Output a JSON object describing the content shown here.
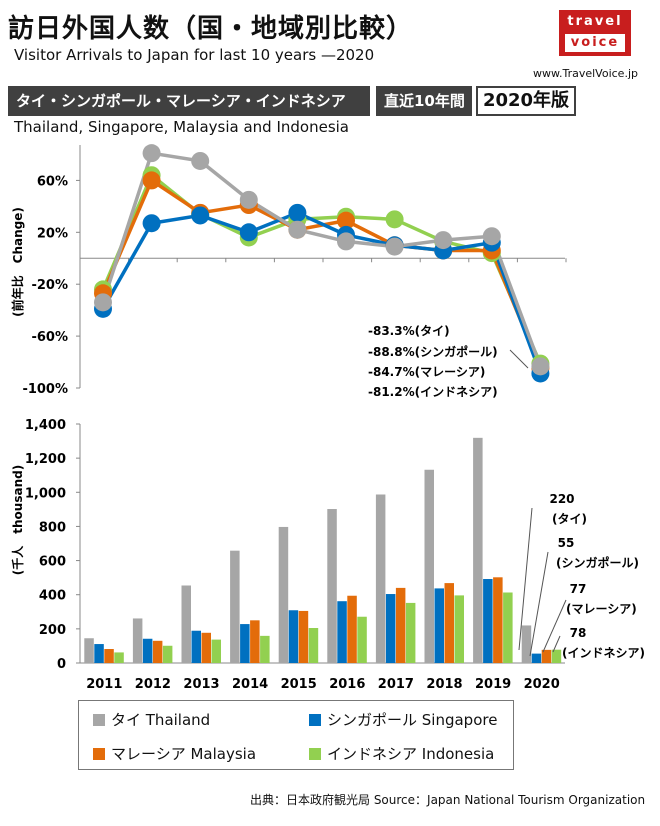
{
  "header": {
    "title_ja": "訪日外国人数（国・地域別比較）",
    "title_en": "Visitor Arrivals to Japan for last 10 years —2020",
    "logo_line1": "travel",
    "logo_line2": "voice",
    "logo_url": "www.TravelVoice.jp",
    "banner_countries": "タイ・シンガポール・マレーシア・インドネシア",
    "banner_period": "直近10年間",
    "banner_edition": "2020年版",
    "subtitle_en": "Thailand, Singapore, Malaysia and Indonesia"
  },
  "colors": {
    "thailand": "#a6a6a6",
    "singapore": "#0070c0",
    "malaysia": "#e36c0a",
    "indonesia": "#92d050"
  },
  "legend": {
    "thailand": "タイ Thailand",
    "singapore": "シンガポール Singapore",
    "malaysia": "マレーシア  Malaysia",
    "indonesia": "インドネシア Indonesia"
  },
  "source": "出典：日本政府観光局   Source：Japan  National Tourism   Organization",
  "chart_data": [
    {
      "type": "line",
      "ylabel": "(前年比　Change)",
      "y_ticks": [
        "-100%",
        "-60%",
        "-20%",
        "20%",
        "60%"
      ],
      "ylim": [
        -100,
        95
      ],
      "x": [
        "2011",
        "2012",
        "2013",
        "2014",
        "2015",
        "2016",
        "2017",
        "2018",
        "2019",
        "2020"
      ],
      "series": [
        {
          "name": "タイ Thailand",
          "key": "thailand",
          "values": [
            -34,
            81,
            75,
            45,
            22,
            13,
            9,
            14,
            17,
            -83.3
          ]
        },
        {
          "name": "シンガポール Singapore",
          "key": "singapore",
          "values": [
            -39,
            27,
            33,
            20,
            35,
            18,
            10,
            6,
            12,
            -88.8
          ]
        },
        {
          "name": "マレーシア Malaysia",
          "key": "malaysia",
          "values": [
            -27,
            60,
            35,
            41,
            22,
            29,
            10,
            6,
            6,
            -84.7
          ]
        },
        {
          "name": "インドネシア Indonesia",
          "key": "indonesia",
          "values": [
            -24,
            64,
            34,
            16,
            30,
            32,
            30,
            13,
            4,
            -81.2
          ]
        }
      ],
      "annotations": [
        "-83.3%(タイ)",
        "-88.8%(シンガポール)",
        "-84.7%(マレーシア)",
        "-81.2%(インドネシア)"
      ]
    },
    {
      "type": "bar",
      "ylabel": "(千人　thousand)",
      "y_ticks": [
        "0",
        "200",
        "400",
        "600",
        "800",
        "1,000",
        "1,200",
        "1,400"
      ],
      "ylim": [
        0,
        1400
      ],
      "categories": [
        "2011",
        "2012",
        "2013",
        "2014",
        "2015",
        "2016",
        "2017",
        "2018",
        "2019",
        "2020"
      ],
      "series": [
        {
          "name": "タイ Thailand",
          "key": "thailand",
          "values": [
            145,
            261,
            454,
            658,
            797,
            902,
            987,
            1132,
            1319,
            220
          ]
        },
        {
          "name": "シンガポール Singapore",
          "key": "singapore",
          "values": [
            111,
            142,
            189,
            228,
            309,
            362,
            404,
            437,
            492,
            55
          ]
        },
        {
          "name": "マレーシア Malaysia",
          "key": "malaysia",
          "values": [
            82,
            130,
            177,
            250,
            305,
            394,
            440,
            468,
            502,
            77
          ]
        },
        {
          "name": "インドネシア Indonesia",
          "key": "indonesia",
          "values": [
            62,
            101,
            137,
            159,
            205,
            271,
            352,
            396,
            413,
            78
          ]
        }
      ],
      "data_labels": [
        {
          "value": "220",
          "label": "(タイ)"
        },
        {
          "value": "55",
          "label": "(シンガポール)"
        },
        {
          "value": "77",
          "label": "(マレーシア)"
        },
        {
          "value": "78",
          "label": "(インドネシア)"
        }
      ]
    }
  ]
}
